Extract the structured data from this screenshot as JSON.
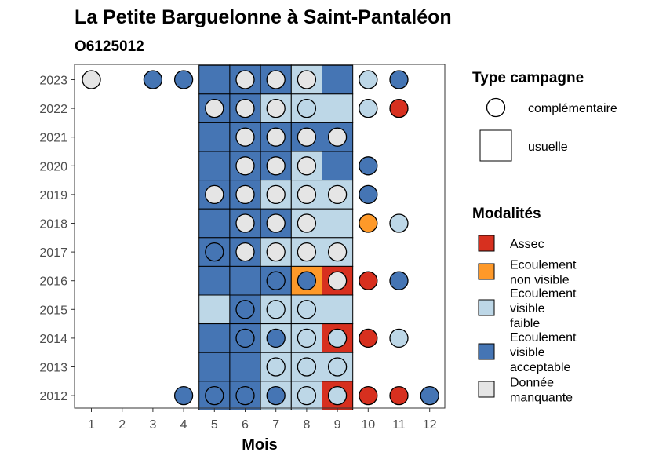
{
  "title": "La Petite Barguelonne à Saint-Pantaléon",
  "subtitle": "O6125012",
  "chart_data": {
    "type": "heatmap",
    "xlabel": "Mois",
    "ylabel": "",
    "x_ticks": [
      "1",
      "2",
      "3",
      "4",
      "5",
      "6",
      "7",
      "8",
      "9",
      "10",
      "11",
      "12"
    ],
    "y_ticks": [
      "2012",
      "2013",
      "2014",
      "2015",
      "2016",
      "2017",
      "2018",
      "2019",
      "2020",
      "2021",
      "2022",
      "2023"
    ],
    "colors": {
      "Assec": "#d7301f",
      "Ecoulement non visible": "#fe9929",
      "Ecoulement visible faible": "#bdd7e7",
      "Ecoulement visible acceptable": "#4575b4",
      "Donnée manquante": "#e5e5e5"
    },
    "usuelle": [
      {
        "year": 2023,
        "month": 5,
        "modalite": "Ecoulement visible acceptable"
      },
      {
        "year": 2023,
        "month": 6,
        "modalite": "Ecoulement visible acceptable"
      },
      {
        "year": 2023,
        "month": 7,
        "modalite": "Ecoulement visible acceptable"
      },
      {
        "year": 2023,
        "month": 8,
        "modalite": "Ecoulement visible faible"
      },
      {
        "year": 2023,
        "month": 9,
        "modalite": "Ecoulement visible acceptable"
      },
      {
        "year": 2022,
        "month": 5,
        "modalite": "Ecoulement visible acceptable"
      },
      {
        "year": 2022,
        "month": 6,
        "modalite": "Ecoulement visible acceptable"
      },
      {
        "year": 2022,
        "month": 7,
        "modalite": "Ecoulement visible faible"
      },
      {
        "year": 2022,
        "month": 8,
        "modalite": "Ecoulement visible faible"
      },
      {
        "year": 2022,
        "month": 9,
        "modalite": "Ecoulement visible faible"
      },
      {
        "year": 2021,
        "month": 5,
        "modalite": "Ecoulement visible acceptable"
      },
      {
        "year": 2021,
        "month": 6,
        "modalite": "Ecoulement visible acceptable"
      },
      {
        "year": 2021,
        "month": 7,
        "modalite": "Ecoulement visible acceptable"
      },
      {
        "year": 2021,
        "month": 8,
        "modalite": "Ecoulement visible acceptable"
      },
      {
        "year": 2021,
        "month": 9,
        "modalite": "Ecoulement visible acceptable"
      },
      {
        "year": 2020,
        "month": 5,
        "modalite": "Ecoulement visible acceptable"
      },
      {
        "year": 2020,
        "month": 6,
        "modalite": "Ecoulement visible acceptable"
      },
      {
        "year": 2020,
        "month": 7,
        "modalite": "Ecoulement visible acceptable"
      },
      {
        "year": 2020,
        "month": 8,
        "modalite": "Ecoulement visible faible"
      },
      {
        "year": 2020,
        "month": 9,
        "modalite": "Ecoulement visible acceptable"
      },
      {
        "year": 2019,
        "month": 5,
        "modalite": "Ecoulement visible acceptable"
      },
      {
        "year": 2019,
        "month": 6,
        "modalite": "Ecoulement visible acceptable"
      },
      {
        "year": 2019,
        "month": 7,
        "modalite": "Ecoulement visible faible"
      },
      {
        "year": 2019,
        "month": 8,
        "modalite": "Ecoulement visible faible"
      },
      {
        "year": 2019,
        "month": 9,
        "modalite": "Ecoulement visible faible"
      },
      {
        "year": 2018,
        "month": 5,
        "modalite": "Ecoulement visible acceptable"
      },
      {
        "year": 2018,
        "month": 6,
        "modalite": "Ecoulement visible acceptable"
      },
      {
        "year": 2018,
        "month": 7,
        "modalite": "Ecoulement visible acceptable"
      },
      {
        "year": 2018,
        "month": 8,
        "modalite": "Ecoulement visible faible"
      },
      {
        "year": 2018,
        "month": 9,
        "modalite": "Ecoulement visible faible"
      },
      {
        "year": 2017,
        "month": 5,
        "modalite": "Ecoulement visible acceptable"
      },
      {
        "year": 2017,
        "month": 6,
        "modalite": "Ecoulement visible acceptable"
      },
      {
        "year": 2017,
        "month": 7,
        "modalite": "Ecoulement visible faible"
      },
      {
        "year": 2017,
        "month": 8,
        "modalite": "Ecoulement visible faible"
      },
      {
        "year": 2017,
        "month": 9,
        "modalite": "Ecoulement visible faible"
      },
      {
        "year": 2016,
        "month": 5,
        "modalite": "Ecoulement visible acceptable"
      },
      {
        "year": 2016,
        "month": 6,
        "modalite": "Ecoulement visible acceptable"
      },
      {
        "year": 2016,
        "month": 7,
        "modalite": "Ecoulement visible acceptable"
      },
      {
        "year": 2016,
        "month": 8,
        "modalite": "Ecoulement non visible"
      },
      {
        "year": 2016,
        "month": 9,
        "modalite": "Assec"
      },
      {
        "year": 2015,
        "month": 5,
        "modalite": "Ecoulement visible faible"
      },
      {
        "year": 2015,
        "month": 6,
        "modalite": "Ecoulement visible acceptable"
      },
      {
        "year": 2015,
        "month": 7,
        "modalite": "Ecoulement visible faible"
      },
      {
        "year": 2015,
        "month": 8,
        "modalite": "Ecoulement visible faible"
      },
      {
        "year": 2015,
        "month": 9,
        "modalite": "Ecoulement visible faible"
      },
      {
        "year": 2014,
        "month": 5,
        "modalite": "Ecoulement visible acceptable"
      },
      {
        "year": 2014,
        "month": 6,
        "modalite": "Ecoulement visible acceptable"
      },
      {
        "year": 2014,
        "month": 7,
        "modalite": "Ecoulement visible faible"
      },
      {
        "year": 2014,
        "month": 8,
        "modalite": "Ecoulement visible faible"
      },
      {
        "year": 2014,
        "month": 9,
        "modalite": "Assec"
      },
      {
        "year": 2013,
        "month": 5,
        "modalite": "Ecoulement visible acceptable"
      },
      {
        "year": 2013,
        "month": 6,
        "modalite": "Ecoulement visible acceptable"
      },
      {
        "year": 2013,
        "month": 7,
        "modalite": "Ecoulement visible faible"
      },
      {
        "year": 2013,
        "month": 8,
        "modalite": "Ecoulement visible faible"
      },
      {
        "year": 2013,
        "month": 9,
        "modalite": "Ecoulement visible faible"
      },
      {
        "year": 2012,
        "month": 5,
        "modalite": "Ecoulement visible acceptable"
      },
      {
        "year": 2012,
        "month": 6,
        "modalite": "Ecoulement visible acceptable"
      },
      {
        "year": 2012,
        "month": 7,
        "modalite": "Ecoulement visible faible"
      },
      {
        "year": 2012,
        "month": 8,
        "modalite": "Ecoulement visible faible"
      },
      {
        "year": 2012,
        "month": 9,
        "modalite": "Assec"
      }
    ],
    "complementaire": [
      {
        "year": 2023,
        "month": 1,
        "modalite": "Donnée manquante"
      },
      {
        "year": 2023,
        "month": 3,
        "modalite": "Ecoulement visible acceptable"
      },
      {
        "year": 2023,
        "month": 4,
        "modalite": "Ecoulement visible acceptable"
      },
      {
        "year": 2023,
        "month": 6,
        "modalite": "Donnée manquante"
      },
      {
        "year": 2023,
        "month": 7,
        "modalite": "Donnée manquante"
      },
      {
        "year": 2023,
        "month": 8,
        "modalite": "Donnée manquante"
      },
      {
        "year": 2023,
        "month": 10,
        "modalite": "Ecoulement visible faible"
      },
      {
        "year": 2023,
        "month": 11,
        "modalite": "Ecoulement visible acceptable"
      },
      {
        "year": 2022,
        "month": 5,
        "modalite": "Donnée manquante"
      },
      {
        "year": 2022,
        "month": 6,
        "modalite": "Donnée manquante"
      },
      {
        "year": 2022,
        "month": 7,
        "modalite": "Donnée manquante"
      },
      {
        "year": 2022,
        "month": 8,
        "modalite": "Ecoulement visible faible"
      },
      {
        "year": 2022,
        "month": 10,
        "modalite": "Ecoulement visible faible"
      },
      {
        "year": 2022,
        "month": 11,
        "modalite": "Assec"
      },
      {
        "year": 2021,
        "month": 6,
        "modalite": "Donnée manquante"
      },
      {
        "year": 2021,
        "month": 7,
        "modalite": "Donnée manquante"
      },
      {
        "year": 2021,
        "month": 8,
        "modalite": "Donnée manquante"
      },
      {
        "year": 2021,
        "month": 9,
        "modalite": "Donnée manquante"
      },
      {
        "year": 2020,
        "month": 6,
        "modalite": "Donnée manquante"
      },
      {
        "year": 2020,
        "month": 7,
        "modalite": "Donnée manquante"
      },
      {
        "year": 2020,
        "month": 8,
        "modalite": "Donnée manquante"
      },
      {
        "year": 2020,
        "month": 10,
        "modalite": "Ecoulement visible acceptable"
      },
      {
        "year": 2019,
        "month": 5,
        "modalite": "Donnée manquante"
      },
      {
        "year": 2019,
        "month": 6,
        "modalite": "Donnée manquante"
      },
      {
        "year": 2019,
        "month": 7,
        "modalite": "Donnée manquante"
      },
      {
        "year": 2019,
        "month": 8,
        "modalite": "Donnée manquante"
      },
      {
        "year": 2019,
        "month": 9,
        "modalite": "Donnée manquante"
      },
      {
        "year": 2019,
        "month": 10,
        "modalite": "Ecoulement visible acceptable"
      },
      {
        "year": 2018,
        "month": 6,
        "modalite": "Donnée manquante"
      },
      {
        "year": 2018,
        "month": 7,
        "modalite": "Donnée manquante"
      },
      {
        "year": 2018,
        "month": 8,
        "modalite": "Donnée manquante"
      },
      {
        "year": 2018,
        "month": 10,
        "modalite": "Ecoulement non visible"
      },
      {
        "year": 2018,
        "month": 11,
        "modalite": "Ecoulement visible faible"
      },
      {
        "year": 2017,
        "month": 5,
        "modalite": "Ecoulement visible acceptable"
      },
      {
        "year": 2017,
        "month": 6,
        "modalite": "Donnée manquante"
      },
      {
        "year": 2017,
        "month": 7,
        "modalite": "Donnée manquante"
      },
      {
        "year": 2017,
        "month": 8,
        "modalite": "Donnée manquante"
      },
      {
        "year": 2017,
        "month": 9,
        "modalite": "Donnée manquante"
      },
      {
        "year": 2016,
        "month": 7,
        "modalite": "Ecoulement visible acceptable"
      },
      {
        "year": 2016,
        "month": 8,
        "modalite": "Ecoulement visible acceptable"
      },
      {
        "year": 2016,
        "month": 9,
        "modalite": "Donnée manquante"
      },
      {
        "year": 2016,
        "month": 10,
        "modalite": "Assec"
      },
      {
        "year": 2016,
        "month": 11,
        "modalite": "Ecoulement visible acceptable"
      },
      {
        "year": 2015,
        "month": 6,
        "modalite": "Ecoulement visible acceptable"
      },
      {
        "year": 2015,
        "month": 7,
        "modalite": "Ecoulement visible faible"
      },
      {
        "year": 2015,
        "month": 8,
        "modalite": "Ecoulement visible faible"
      },
      {
        "year": 2014,
        "month": 6,
        "modalite": "Ecoulement visible acceptable"
      },
      {
        "year": 2014,
        "month": 7,
        "modalite": "Ecoulement visible acceptable"
      },
      {
        "year": 2014,
        "month": 8,
        "modalite": "Ecoulement visible faible"
      },
      {
        "year": 2014,
        "month": 9,
        "modalite": "Ecoulement visible faible"
      },
      {
        "year": 2014,
        "month": 10,
        "modalite": "Assec"
      },
      {
        "year": 2014,
        "month": 11,
        "modalite": "Ecoulement visible faible"
      },
      {
        "year": 2013,
        "month": 7,
        "modalite": "Ecoulement visible faible"
      },
      {
        "year": 2013,
        "month": 8,
        "modalite": "Ecoulement visible faible"
      },
      {
        "year": 2013,
        "month": 9,
        "modalite": "Ecoulement visible faible"
      },
      {
        "year": 2012,
        "month": 4,
        "modalite": "Ecoulement visible acceptable"
      },
      {
        "year": 2012,
        "month": 5,
        "modalite": "Ecoulement visible acceptable"
      },
      {
        "year": 2012,
        "month": 6,
        "modalite": "Ecoulement visible acceptable"
      },
      {
        "year": 2012,
        "month": 7,
        "modalite": "Ecoulement visible acceptable"
      },
      {
        "year": 2012,
        "month": 8,
        "modalite": "Ecoulement visible faible"
      },
      {
        "year": 2012,
        "month": 9,
        "modalite": "Ecoulement visible faible"
      },
      {
        "year": 2012,
        "month": 10,
        "modalite": "Assec"
      },
      {
        "year": 2012,
        "month": 11,
        "modalite": "Assec"
      },
      {
        "year": 2012,
        "month": 12,
        "modalite": "Ecoulement visible acceptable"
      }
    ]
  },
  "legend": {
    "type_title": "Type campagne",
    "type_items": [
      {
        "label": "complémentaire",
        "shape": "circle"
      },
      {
        "label": "usuelle",
        "shape": "square"
      }
    ],
    "modalites_title": "Modalités",
    "modalites_items": [
      {
        "key": "Assec",
        "lines": [
          "Assec"
        ]
      },
      {
        "key": "Ecoulement non visible",
        "lines": [
          "Ecoulement",
          "non visible"
        ]
      },
      {
        "key": "Ecoulement visible faible",
        "lines": [
          "Ecoulement",
          "visible",
          "faible"
        ]
      },
      {
        "key": "Ecoulement visible acceptable",
        "lines": [
          "Ecoulement",
          "visible",
          "acceptable"
        ]
      },
      {
        "key": "Donnée manquante",
        "lines": [
          "Donnée",
          "manquante"
        ]
      }
    ]
  }
}
